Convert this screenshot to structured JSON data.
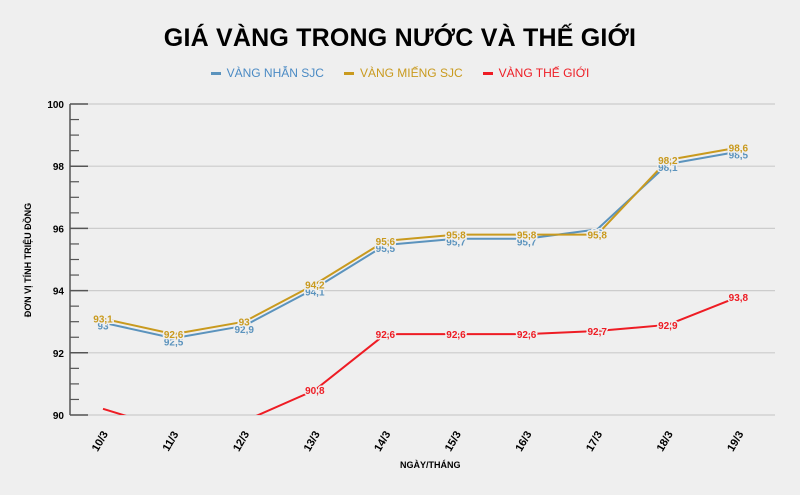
{
  "chart_data": {
    "type": "line",
    "title": "GIÁ VÀNG TRONG NƯỚC VÀ THẾ GIỚI",
    "xlabel": "NGÀY/THÁNG",
    "ylabel": "ĐƠN VỊ TÍNH TRIỆU ĐỒNG",
    "ylim": [
      90,
      100
    ],
    "yticks": [
      90,
      92,
      94,
      96,
      98,
      100
    ],
    "grid": true,
    "legend_position": "top",
    "categories": [
      "10/3",
      "11/3",
      "12/3",
      "13/3",
      "14/3",
      "15/3",
      "16/3",
      "17/3",
      "18/3",
      "19/3"
    ],
    "series": [
      {
        "name": "VÀNG NHẪN SJC",
        "color": "#5b93bd",
        "values": [
          93,
          92.5,
          92.9,
          94.1,
          95.5,
          95.7,
          95.7,
          96,
          98.1,
          98.5
        ],
        "labels": [
          "93",
          "92,5",
          "92,9",
          "94,1",
          "95,5",
          "95,7",
          "95,7",
          "96",
          "98,1",
          "98,5"
        ]
      },
      {
        "name": "VÀNG MIẾNG SJC",
        "color": "#c99a1e",
        "values": [
          93.1,
          92.6,
          93,
          94.2,
          95.6,
          95.8,
          95.8,
          95.8,
          98.2,
          98.6
        ],
        "labels": [
          "93,1",
          "92,6",
          "93",
          "94,2",
          "95,6",
          "95,8",
          "95,8",
          "95,8",
          "98,2",
          "98,6"
        ]
      },
      {
        "name": "VÀNG THẾ GIỚI",
        "color": "#ee1c24",
        "values": [
          90.2,
          89.5,
          89.8,
          90.8,
          92.6,
          92.6,
          92.6,
          92.7,
          92.9,
          93.8
        ],
        "labels": [
          "",
          "",
          "",
          "90,8",
          "92,6",
          "92,6",
          "92,6",
          "92,7",
          "92,9",
          "93,8"
        ]
      }
    ]
  },
  "title": "GIÁ VÀNG TRONG NƯỚC VÀ THẾ GIỚI",
  "legend": [
    {
      "label": "VÀNG NHẪN SJC",
      "color": "#5b93bd"
    },
    {
      "label": "VÀNG MIẾNG SJC",
      "color": "#c99a1e"
    },
    {
      "label": "VÀNG THẾ GIỚI",
      "color": "#ee1c24"
    }
  ],
  "axes": {
    "xlabel": "NGÀY/THÁNG",
    "ylabel": "ĐƠN VỊ TÍNH TRIỆU ĐỒNG"
  }
}
